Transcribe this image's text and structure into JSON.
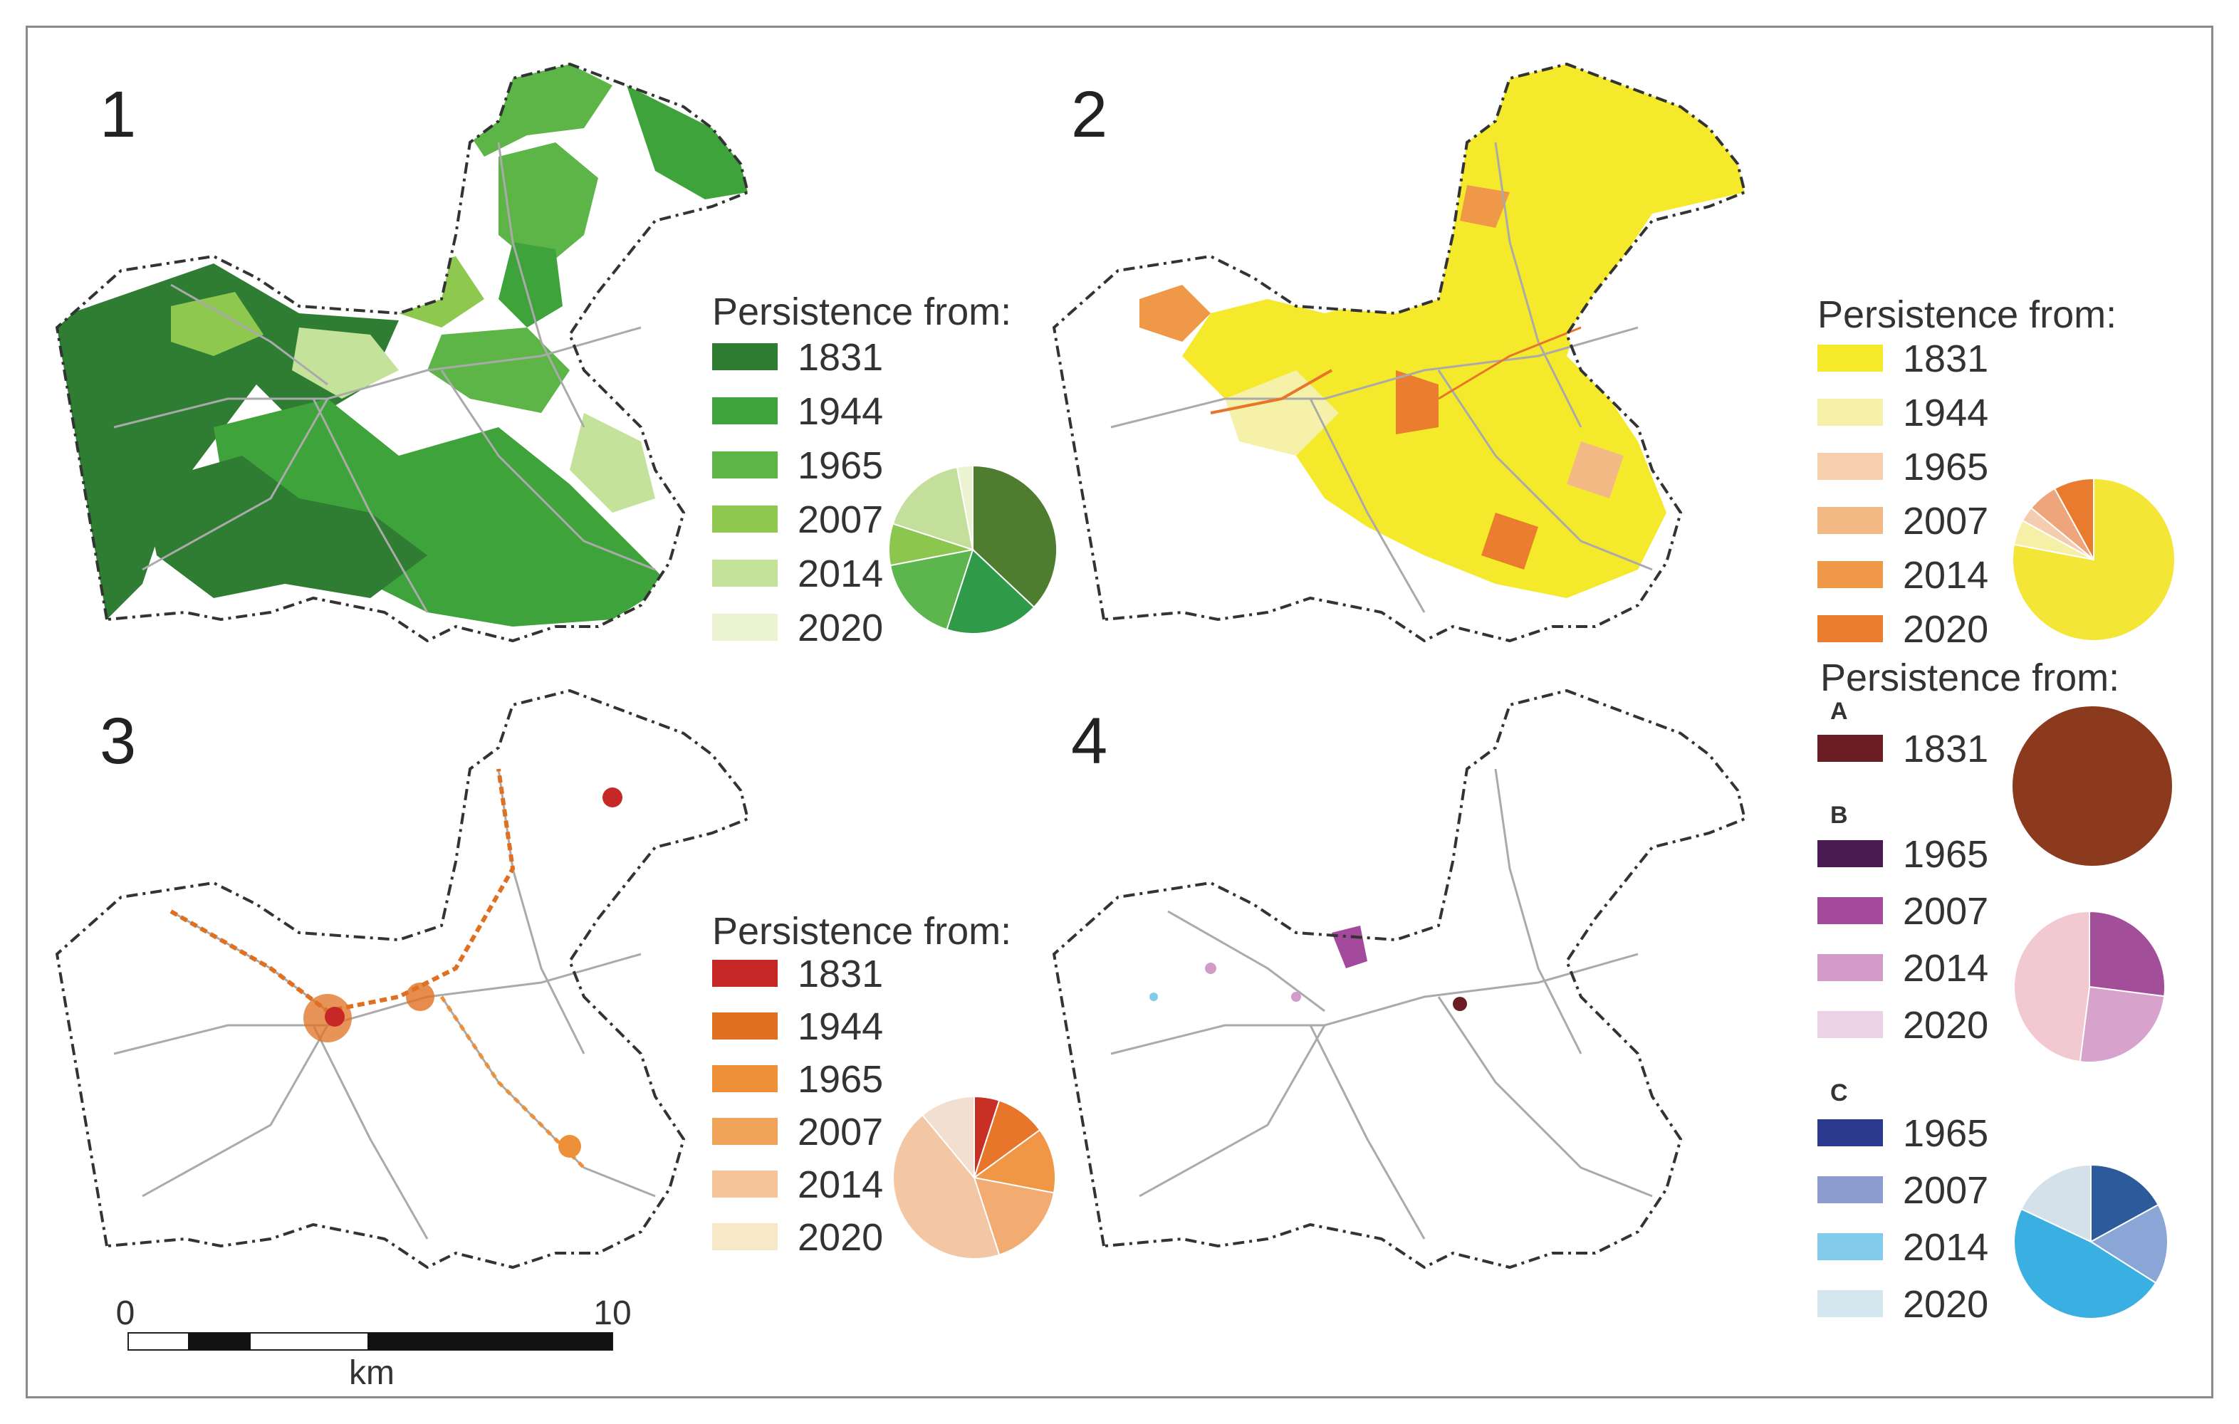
{
  "legend_title": "Persistence from:",
  "panels": [
    {
      "number": "1",
      "legend": [
        {
          "year": "1831",
          "color": "#2e7d32"
        },
        {
          "year": "1944",
          "color": "#3fa33b"
        },
        {
          "year": "1965",
          "color": "#5db547"
        },
        {
          "year": "2007",
          "color": "#8fc84f"
        },
        {
          "year": "2014",
          "color": "#c5e29a"
        },
        {
          "year": "2020",
          "color": "#ebf3d3"
        }
      ],
      "pie": [
        {
          "color": "#4e7d2f",
          "value": 37
        },
        {
          "color": "#2f9a48",
          "value": 18
        },
        {
          "color": "#5cb54d",
          "value": 17
        },
        {
          "color": "#8cc64f",
          "value": 8
        },
        {
          "color": "#c3df9b",
          "value": 17
        },
        {
          "color": "#ebf3d3",
          "value": 3
        }
      ]
    },
    {
      "number": "2",
      "legend": [
        {
          "year": "1831",
          "color": "#f5e92c"
        },
        {
          "year": "1944",
          "color": "#f6f1a8"
        },
        {
          "year": "1965",
          "color": "#f5cfae"
        },
        {
          "year": "2007",
          "color": "#f3b985"
        },
        {
          "year": "2014",
          "color": "#ef9848"
        },
        {
          "year": "2020",
          "color": "#ea7e2e"
        }
      ],
      "pie": [
        {
          "color": "#f3e636",
          "value": 78
        },
        {
          "color": "#f6f0a6",
          "value": 5
        },
        {
          "color": "#f4cdb0",
          "value": 3
        },
        {
          "color": "#efa57b",
          "value": 6
        },
        {
          "color": "#e87b2e",
          "value": 8
        }
      ]
    },
    {
      "number": "3",
      "legend": [
        {
          "year": "1831",
          "color": "#c62828"
        },
        {
          "year": "1944",
          "color": "#e07020"
        },
        {
          "year": "1965",
          "color": "#ee9038"
        },
        {
          "year": "2007",
          "color": "#f0a45a"
        },
        {
          "year": "2014",
          "color": "#f5c499"
        },
        {
          "year": "2020",
          "color": "#f7e8c8"
        }
      ],
      "pie": [
        {
          "color": "#c83026",
          "value": 5
        },
        {
          "color": "#e8762a",
          "value": 10
        },
        {
          "color": "#ef9745",
          "value": 13
        },
        {
          "color": "#f2ac72",
          "value": 17
        },
        {
          "color": "#f4c7a4",
          "value": 44
        },
        {
          "color": "#f3dfcf",
          "value": 11
        }
      ]
    },
    {
      "number": "4",
      "groups": [
        {
          "label": "A",
          "legend": [
            {
              "year": "1831",
              "color": "#6b1d24"
            }
          ],
          "pie": [
            {
              "color": "#8b3a1e",
              "value": 100
            }
          ]
        },
        {
          "label": "B",
          "legend": [
            {
              "year": "1965",
              "color": "#4a1a52"
            },
            {
              "year": "2007",
              "color": "#a44a9c"
            },
            {
              "year": "2014",
              "color": "#d39bc9"
            },
            {
              "year": "2020",
              "color": "#ecd2e6"
            }
          ],
          "pie": [
            {
              "color": "#a24e98",
              "value": 27
            },
            {
              "color": "#d7a3cd",
              "value": 25
            },
            {
              "color": "#f2c9d0",
              "value": 48
            }
          ]
        },
        {
          "label": "C",
          "legend": [
            {
              "year": "1965",
              "color": "#2b3a8c"
            },
            {
              "year": "2007",
              "color": "#8c9ccf"
            },
            {
              "year": "2014",
              "color": "#82cbea"
            },
            {
              "year": "2020",
              "color": "#d4e6ee"
            }
          ],
          "pie": [
            {
              "color": "#2d5a9a",
              "value": 17
            },
            {
              "color": "#8aa6d6",
              "value": 17
            },
            {
              "color": "#3ab0e2",
              "value": 48
            },
            {
              "color": "#d4e1ea",
              "value": 18
            }
          ]
        }
      ]
    }
  ],
  "scale_bar": {
    "start": "0",
    "end": "10",
    "unit": "km"
  }
}
